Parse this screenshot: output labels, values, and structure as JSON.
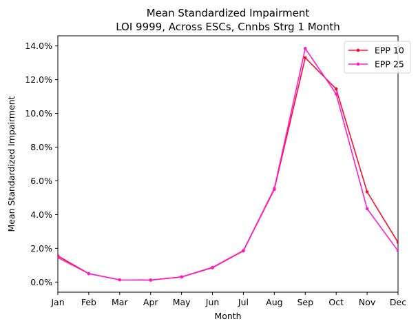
{
  "chart_data": {
    "type": "line",
    "title_line1": "Mean Standardized Impairment",
    "title_line2": "LOI 9999, Across ESCs, Cnnbs Strg 1 Month",
    "xlabel": "Month",
    "ylabel": "Mean Standardized Impairment",
    "categories": [
      "Jan",
      "Feb",
      "Mar",
      "Apr",
      "May",
      "Jun",
      "Jul",
      "Aug",
      "Sep",
      "Oct",
      "Nov",
      "Dec"
    ],
    "y_ticks": [
      0,
      2,
      4,
      6,
      8,
      10,
      12,
      14
    ],
    "y_tick_labels": [
      "0.0%",
      "2.0%",
      "4.0%",
      "6.0%",
      "8.0%",
      "10.0%",
      "12.0%",
      "14.0%"
    ],
    "ylim": [
      -0.6,
      14.6
    ],
    "grid": false,
    "legend_position": "top-right",
    "series": [
      {
        "name": "EPP 10",
        "color": "#ff0a2a",
        "values": [
          1.55,
          0.5,
          0.13,
          0.12,
          0.3,
          0.85,
          1.85,
          5.5,
          13.3,
          11.45,
          5.35,
          2.35
        ]
      },
      {
        "name": "EPP 25",
        "color": "#ff1bd0",
        "values": [
          1.45,
          0.5,
          0.13,
          0.11,
          0.31,
          0.87,
          1.87,
          5.55,
          13.85,
          11.15,
          4.35,
          1.85
        ]
      }
    ]
  }
}
